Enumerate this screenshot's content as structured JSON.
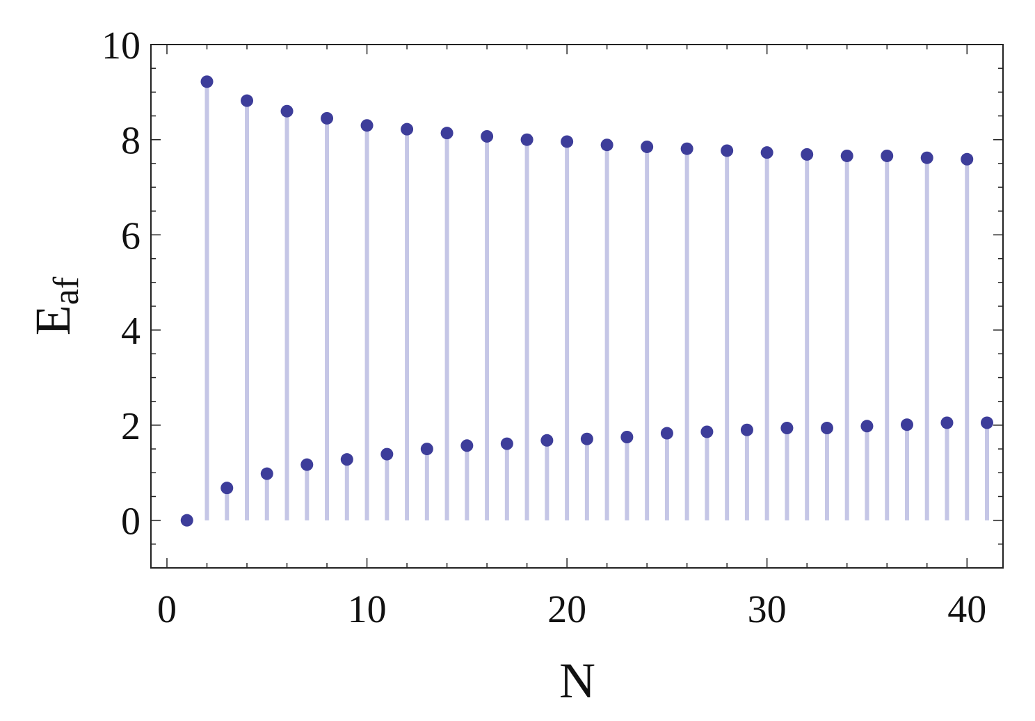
{
  "colors": {
    "point": "#3d3d9a",
    "stem": "#c5c6e6",
    "frame": "#222222"
  },
  "chart_data": {
    "type": "scatter",
    "style": "stem",
    "title": "",
    "xlabel": "N",
    "ylabel": {
      "base": "E",
      "sub": "af"
    },
    "xlim": [
      -0.8,
      41.8
    ],
    "ylim": [
      -1,
      10
    ],
    "xticks": [
      0,
      10,
      20,
      30,
      40
    ],
    "yticks": [
      0,
      2,
      4,
      6,
      8,
      10
    ],
    "grid": false,
    "legend": "none",
    "series": [
      {
        "x": [
          1,
          2,
          3,
          4,
          5,
          6,
          7,
          8,
          9,
          10,
          11,
          12,
          13,
          14,
          15,
          16,
          17,
          18,
          19,
          20,
          21,
          22,
          23,
          24,
          25,
          26,
          27,
          28,
          29,
          30,
          31,
          32,
          33,
          34,
          35,
          36,
          37,
          38,
          39,
          40,
          41
        ],
        "values": [
          0,
          9.22,
          0.68,
          8.82,
          0.98,
          8.6,
          1.17,
          8.45,
          1.28,
          8.3,
          1.39,
          8.22,
          1.5,
          8.14,
          1.57,
          8.07,
          1.61,
          8.0,
          1.68,
          7.96,
          1.71,
          7.89,
          1.75,
          7.85,
          1.83,
          7.81,
          1.86,
          7.77,
          1.9,
          7.73,
          1.94,
          7.69,
          1.94,
          7.66,
          1.98,
          7.66,
          2.01,
          7.62,
          2.05,
          7.59,
          2.05
        ]
      }
    ]
  }
}
